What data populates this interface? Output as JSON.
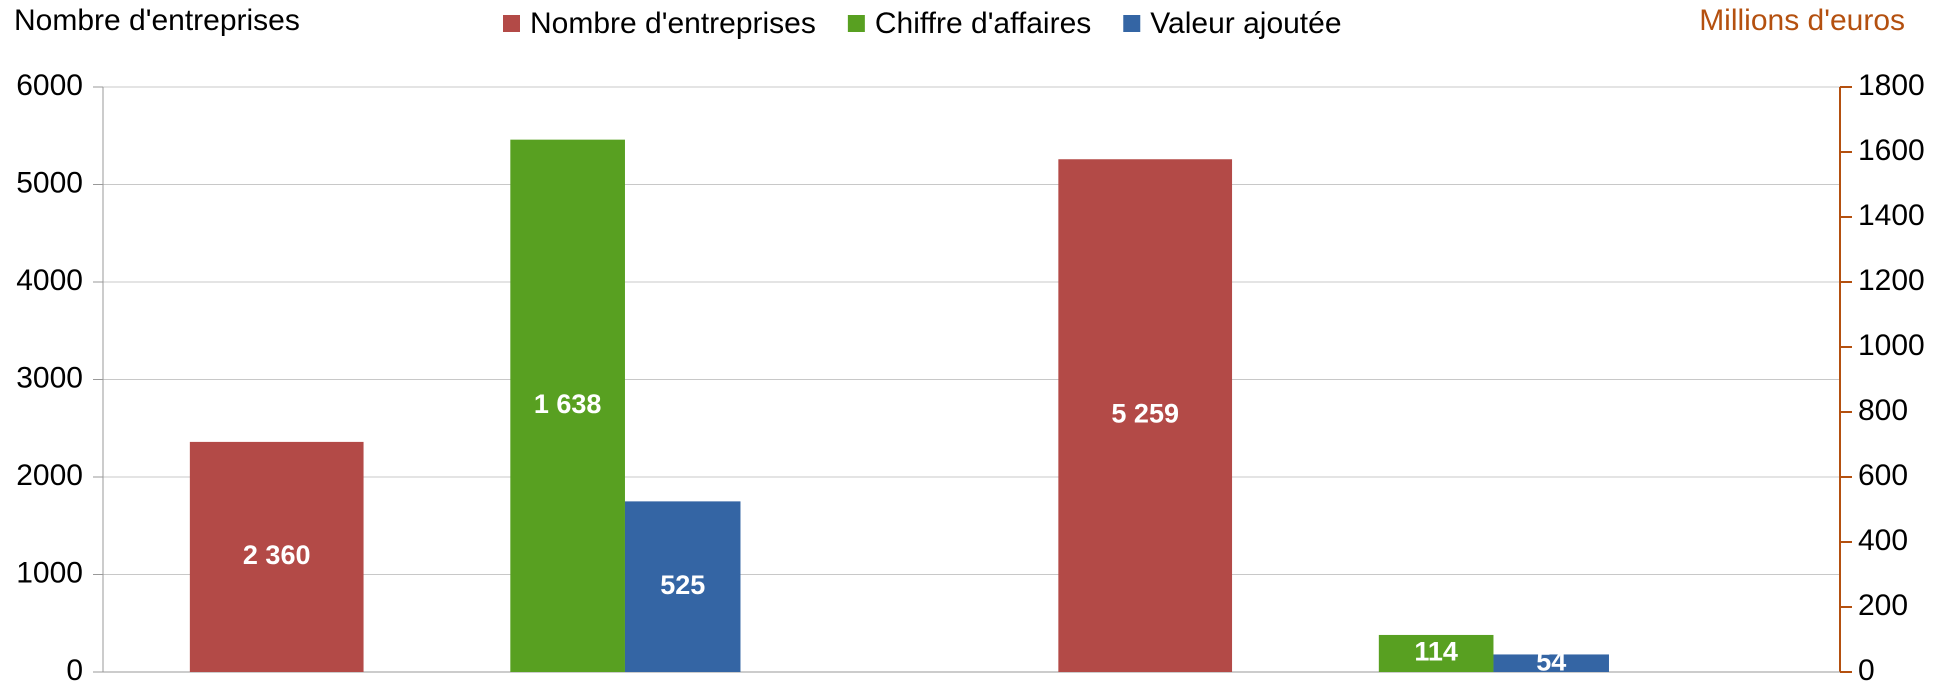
{
  "chart_data": {
    "type": "bar",
    "y_label": "Nombre d'entreprises",
    "y2_label": "Millions d'euros",
    "categories": [
      null,
      null
    ],
    "series": [
      {
        "name": "Nombre d'entreprises",
        "color": "#b34a47",
        "values": [
          2360,
          5259
        ],
        "value_labels": [
          "2 360",
          "5 259"
        ]
      },
      {
        "name": "Chiffre d'affaires",
        "color": "#58a021",
        "values": [
          1638,
          114
        ],
        "value_labels": [
          "1 638",
          "114"
        ],
        "axis": "y2"
      },
      {
        "name": "Valeur ajoutée",
        "color": "#3465a4",
        "values": [
          525,
          54
        ],
        "axis": "y2"
      }
    ],
    "ylim": [
      0,
      6000
    ],
    "yticks": [
      0,
      1000,
      2000,
      3000,
      4000,
      5000,
      6000
    ],
    "y2lim": [
      0,
      1800
    ],
    "y2ticks": [
      0,
      200,
      400,
      600,
      800,
      1000,
      1200,
      1400,
      1600,
      1800
    ],
    "y2color": "#b4500f",
    "grid": true,
    "legend": "top"
  }
}
